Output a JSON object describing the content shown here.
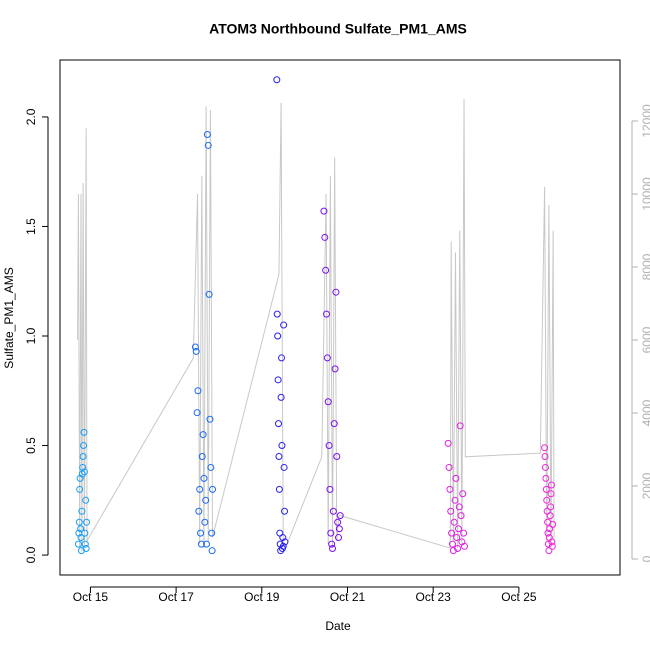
{
  "chart_data": {
    "type": "scatter",
    "title": "ATOM3 Northbound Sulfate_PM1_AMS",
    "x_label": "Date",
    "y_label": "Sulfate_PM1_AMS",
    "xlim": [
      14.29,
      27.36
    ],
    "xticks": [
      {
        "value": 15,
        "label": "Oct 15"
      },
      {
        "value": 17,
        "label": "Oct 17"
      },
      {
        "value": 19,
        "label": "Oct 19"
      },
      {
        "value": 21,
        "label": "Oct 21"
      },
      {
        "value": 23,
        "label": "Oct 23"
      },
      {
        "value": 25,
        "label": "Oct 25"
      }
    ],
    "ylim": [
      -0.091,
      2.26
    ],
    "yticks": [
      {
        "value": 0,
        "label": "0.0"
      },
      {
        "value": 0.5,
        "label": "0.5"
      },
      {
        "value": 1,
        "label": "1.0"
      },
      {
        "value": 1.5,
        "label": "1.5"
      },
      {
        "value": 2,
        "label": "2.0"
      }
    ],
    "y2lim": [
      -438,
      13671
    ],
    "y2ticks": [
      0,
      2000,
      4000,
      6000,
      8000,
      10000,
      12000
    ],
    "series": [
      {
        "color": "#1aa0f5",
        "x": [
          14.72,
          14.73,
          14.74,
          14.75,
          14.76,
          14.77,
          14.78,
          14.79,
          14.8,
          14.81,
          14.82,
          14.83,
          14.84,
          14.85,
          14.86,
          14.87,
          14.88,
          14.89,
          14.9,
          14.91
        ],
        "values": [
          0.05,
          0.1,
          0.15,
          0.3,
          0.35,
          0.12,
          0.08,
          0.02,
          0.2,
          0.37,
          0.4,
          0.45,
          0.5,
          0.56,
          0.38,
          0.1,
          0.05,
          0.25,
          0.03,
          0.15
        ]
      },
      {
        "color": "#1a6af0",
        "x": [
          17.45,
          17.47,
          17.49,
          17.51,
          17.53,
          17.55,
          17.57,
          17.59,
          17.61,
          17.63,
          17.65,
          17.67,
          17.69,
          17.71,
          17.73,
          17.75,
          17.77,
          17.79,
          17.81,
          17.83,
          17.84,
          17.85
        ],
        "values": [
          0.95,
          0.93,
          0.65,
          0.75,
          0.2,
          0.3,
          0.1,
          0.05,
          0.45,
          0.55,
          0.35,
          0.15,
          0.25,
          0.05,
          1.92,
          1.87,
          1.19,
          0.62,
          0.4,
          0.1,
          0.02,
          0.3
        ]
      },
      {
        "color": "#2a20f0",
        "x": [
          19.35,
          19.36,
          19.37,
          19.38,
          19.39,
          19.4,
          19.41,
          19.42,
          19.43,
          19.44,
          19.45,
          19.46,
          19.47,
          19.48,
          19.49,
          19.5,
          19.51,
          19.52,
          19.53,
          19.54
        ],
        "values": [
          2.17,
          1.1,
          1.0,
          0.8,
          0.6,
          0.45,
          0.3,
          0.1,
          0.05,
          0.02,
          0.72,
          0.9,
          0.5,
          0.03,
          0.08,
          0.04,
          1.05,
          0.4,
          0.2,
          0.06
        ]
      },
      {
        "color": "#7a10f0",
        "x": [
          20.45,
          20.47,
          20.49,
          20.51,
          20.53,
          20.55,
          20.57,
          20.59,
          20.61,
          20.63,
          20.65,
          20.67,
          20.69,
          20.71,
          20.73,
          20.75,
          20.77,
          20.79,
          20.81,
          20.83
        ],
        "values": [
          1.57,
          1.45,
          1.3,
          1.1,
          0.9,
          0.7,
          0.5,
          0.3,
          0.1,
          0.05,
          0.03,
          0.2,
          0.6,
          0.85,
          1.2,
          0.45,
          0.15,
          0.08,
          0.12,
          0.18
        ]
      },
      {
        "color": "#e020e0",
        "x": [
          23.35,
          23.37,
          23.39,
          23.41,
          23.43,
          23.45,
          23.47,
          23.49,
          23.51,
          23.53,
          23.55,
          23.57,
          23.59,
          23.61,
          23.63,
          23.65,
          23.67,
          23.69,
          23.71,
          23.73
        ],
        "values": [
          0.51,
          0.4,
          0.3,
          0.2,
          0.1,
          0.05,
          0.02,
          0.15,
          0.25,
          0.35,
          0.08,
          0.03,
          0.12,
          0.22,
          0.59,
          0.18,
          0.06,
          0.28,
          0.1,
          0.04
        ]
      },
      {
        "color": "#f025d8",
        "x": [
          25.6,
          25.61,
          25.62,
          25.63,
          25.64,
          25.65,
          25.66,
          25.67,
          25.68,
          25.69,
          25.7,
          25.71,
          25.72,
          25.73,
          25.74,
          25.75,
          25.76,
          25.77,
          25.78,
          25.79
        ],
        "values": [
          0.49,
          0.45,
          0.4,
          0.35,
          0.3,
          0.25,
          0.2,
          0.15,
          0.1,
          0.05,
          0.02,
          0.08,
          0.12,
          0.18,
          0.22,
          0.28,
          0.32,
          0.06,
          0.04,
          0.14
        ]
      },
      {
        "color": "#c8c8c8",
        "axis": "y2",
        "type": "line",
        "x": [
          14.7,
          14.72,
          14.75,
          14.78,
          14.8,
          14.83,
          14.86,
          14.9,
          14.92,
          17.4,
          17.5,
          17.55,
          17.6,
          17.65,
          17.7,
          17.75,
          17.8,
          17.85,
          19.4,
          19.45,
          19.5,
          19.55,
          20.4,
          20.5,
          20.55,
          20.6,
          20.65,
          20.7,
          20.75,
          20.8,
          23.4,
          23.42,
          23.47,
          23.52,
          23.57,
          23.62,
          23.67,
          23.72,
          23.75,
          25.5,
          25.6,
          25.65,
          25.7,
          25.75,
          25.8,
          25.82
        ],
        "values": [
          6000,
          10000,
          300,
          10000,
          200,
          10300,
          300,
          11800,
          500,
          5500,
          10000,
          400,
          10500,
          300,
          12400,
          500,
          12300,
          600,
          7800,
          12500,
          400,
          300,
          2800,
          10000,
          400,
          10500,
          300,
          11000,
          500,
          1200,
          300,
          8700,
          500,
          8400,
          300,
          9000,
          400,
          12600,
          2800,
          2900,
          10200,
          500,
          9700,
          400,
          9000,
          500
        ]
      }
    ]
  }
}
